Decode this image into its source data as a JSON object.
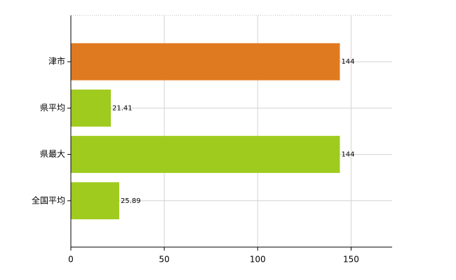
{
  "chart_data": {
    "type": "hbar",
    "categories": [
      "津市",
      "県平均",
      "県最大",
      "全国平均"
    ],
    "values": [
      144,
      21.41,
      144,
      25.89
    ],
    "colors": [
      "#e07a20",
      "#9fcb1f",
      "#9fcb1f",
      "#9fcb1f"
    ],
    "xlim": [
      0,
      172
    ],
    "xticks": [
      0,
      50,
      100,
      150
    ],
    "grid": true
  }
}
